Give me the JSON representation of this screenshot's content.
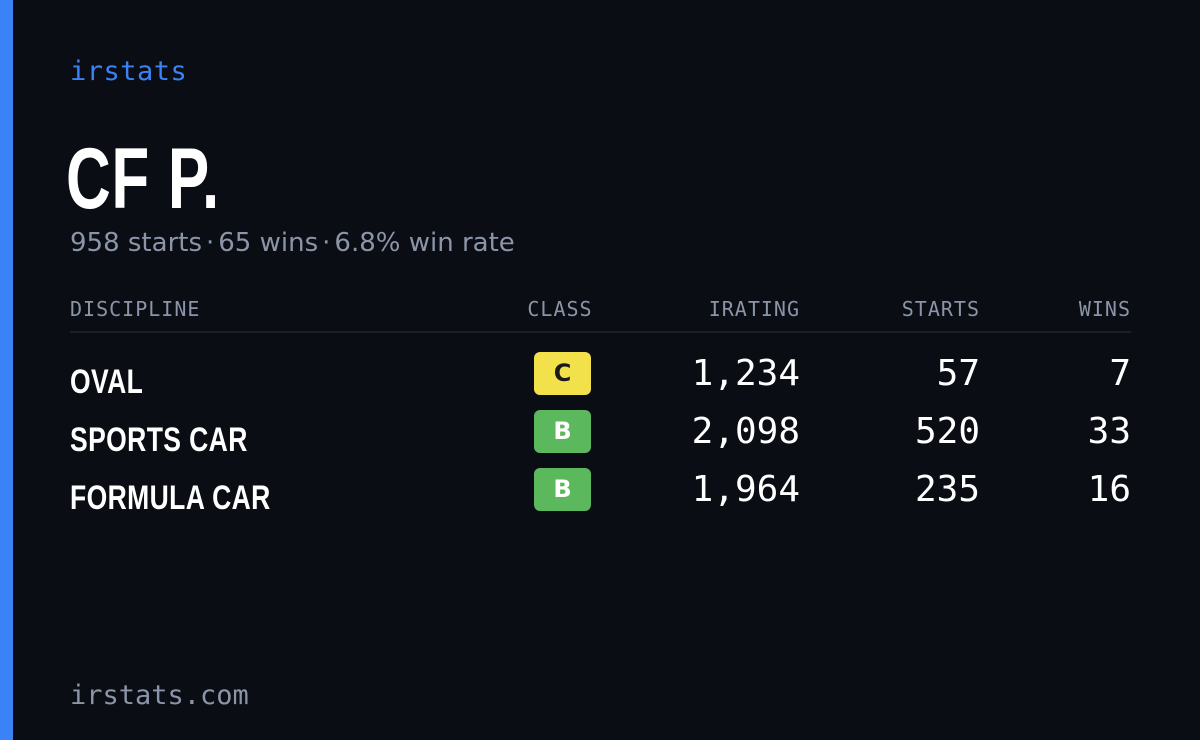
{
  "brand": "irstats",
  "driver": {
    "name": "CF P.",
    "starts": "958 starts",
    "wins": "65 wins",
    "win_rate": "6.8% win rate",
    "separator": "·"
  },
  "table": {
    "headers": {
      "discipline": "DISCIPLINE",
      "class": "CLASS",
      "irating": "IRATING",
      "starts": "STARTS",
      "wins": "WINS"
    },
    "rows": [
      {
        "discipline": "OVAL",
        "class": "C",
        "class_color": "#f2e14a",
        "class_text_color": "#1a1a1a",
        "irating": "1,234",
        "starts": "57",
        "wins": "7"
      },
      {
        "discipline": "SPORTS CAR",
        "class": "B",
        "class_color": "#5cb85c",
        "class_text_color": "#ffffff",
        "irating": "2,098",
        "starts": "520",
        "wins": "33"
      },
      {
        "discipline": "FORMULA CAR",
        "class": "B",
        "class_color": "#5cb85c",
        "class_text_color": "#ffffff",
        "irating": "1,964",
        "starts": "235",
        "wins": "16"
      }
    ]
  },
  "footer": {
    "url": "irstats.com"
  },
  "colors": {
    "accent": "#3b82f6",
    "background": "#0a0d14",
    "muted": "#8b95a7"
  }
}
